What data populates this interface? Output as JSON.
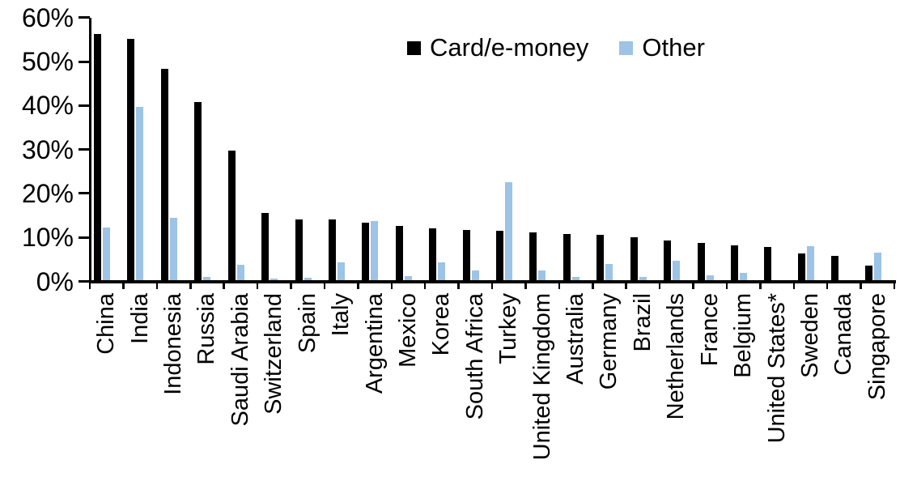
{
  "chart_data": {
    "type": "bar",
    "title": "",
    "xlabel": "",
    "ylabel": "",
    "ylim": [
      0,
      60
    ],
    "y_tick_step": 10,
    "y_tick_labels": [
      "0%",
      "10%",
      "20%",
      "30%",
      "40%",
      "50%",
      "60%"
    ],
    "grid": false,
    "legend_position": "top-center",
    "value_unit": "%",
    "categories": [
      "China",
      "India",
      "Indonesia",
      "Russia",
      "Saudi Arabia",
      "Switzerland",
      "Spain",
      "Italy",
      "Argentina",
      "Mexico",
      "Korea",
      "South Africa",
      "Turkey",
      "United Kingdom",
      "Australia",
      "Germany",
      "Brazil",
      "Netherlands",
      "France",
      "Belgium",
      "United States*",
      "Sweden",
      "Canada",
      "Singapore"
    ],
    "series": [
      {
        "name": "Card/e-money",
        "color": "#000000",
        "values": [
          56.3,
          55.2,
          48.4,
          40.7,
          29.8,
          15.5,
          14.0,
          14.0,
          13.3,
          12.7,
          12.1,
          11.7,
          11.6,
          11.1,
          10.8,
          10.6,
          10.0,
          9.3,
          8.7,
          8.2,
          7.8,
          6.4,
          5.8,
          3.5
        ]
      },
      {
        "name": "Other",
        "color": "#9DC3E6",
        "values": [
          12.2,
          39.6,
          14.4,
          1.0,
          3.7,
          0.7,
          0.9,
          4.4,
          13.7,
          1.2,
          4.4,
          2.4,
          22.5,
          2.4,
          1.0,
          3.9,
          1.1,
          4.7,
          1.4,
          1.9,
          0.2,
          8.0,
          0.0,
          6.5
        ]
      }
    ]
  }
}
